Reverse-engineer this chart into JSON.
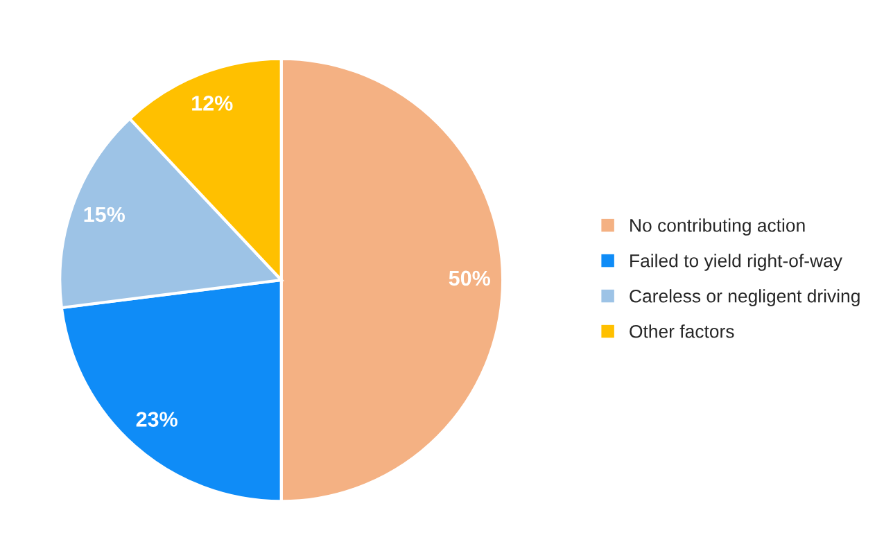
{
  "chart_data": {
    "type": "pie",
    "categories": [
      "No contributing action",
      "Failed to yield right-of-way",
      "Careless or negligent driving",
      "Other factors"
    ],
    "values": [
      50,
      23,
      15,
      12
    ],
    "colors": [
      "#f4b183",
      "#0f8cf7",
      "#9dc3e6",
      "#ffc000"
    ],
    "value_labels": [
      "50%",
      "23%",
      "15%",
      "12%"
    ],
    "legend": "right"
  }
}
